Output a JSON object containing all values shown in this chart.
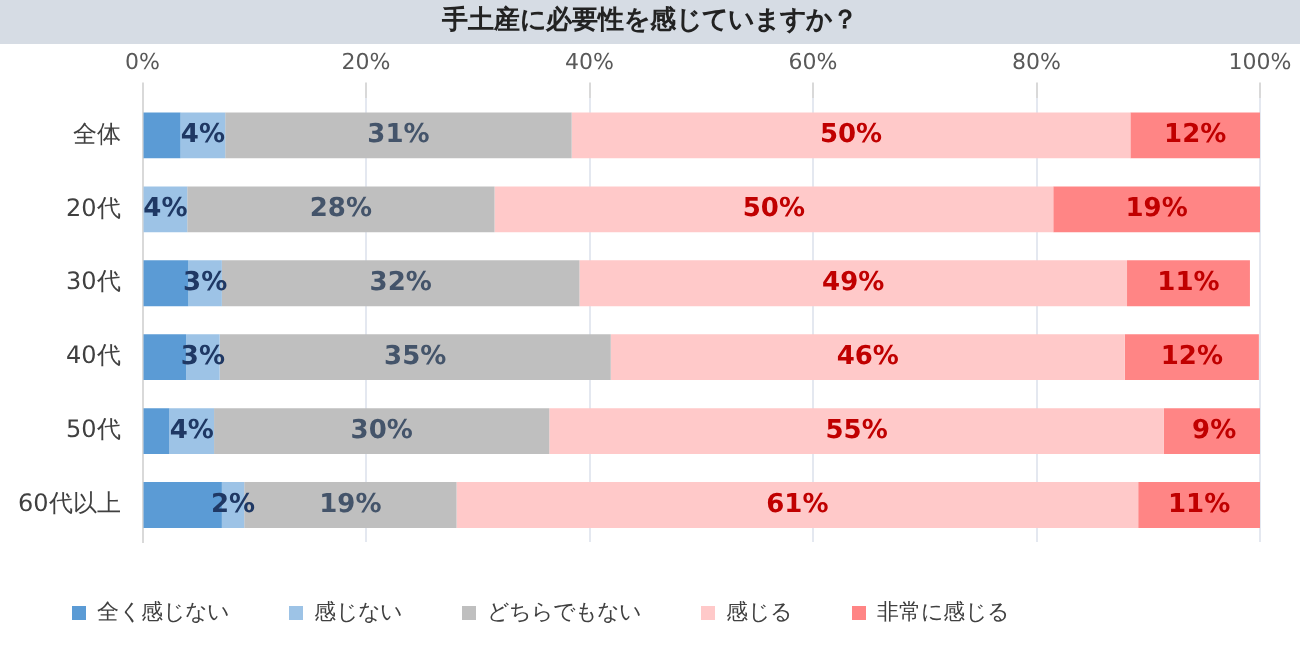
{
  "chart_data": {
    "type": "bar",
    "orientation": "horizontal",
    "stacked": true,
    "title": "手土産に必要性を感じていますか？",
    "categories": [
      "全体",
      "20代",
      "30代",
      "40代",
      "50代",
      "60代以上"
    ],
    "xlim": [
      0,
      100
    ],
    "xticks": [
      {
        "value": 0,
        "label": "0%"
      },
      {
        "value": 20,
        "label": "20%"
      },
      {
        "value": 40,
        "label": "40%"
      },
      {
        "value": 60,
        "label": "60%"
      },
      {
        "value": 80,
        "label": "80%"
      },
      {
        "value": 100,
        "label": "100%"
      }
    ],
    "grid": "x",
    "legend": "bottom",
    "series": [
      {
        "name": "全く感じない",
        "color": "#5b9bd5",
        "values": [
          3.4,
          0,
          4.1,
          3.9,
          2.4,
          7.1
        ]
      },
      {
        "name": "感じない",
        "color": "#9dc3e6",
        "values": [
          4,
          4,
          3,
          3,
          4,
          2
        ],
        "value_labels": [
          "4%",
          "4%",
          "3%",
          "3%",
          "4%",
          "2%"
        ]
      },
      {
        "name": "どちらでもない",
        "color": "#bfbfbf",
        "values": [
          31,
          27.5,
          32,
          35,
          30,
          19
        ],
        "value_labels": [
          "31%",
          "28%",
          "32%",
          "35%",
          "30%",
          "19%"
        ]
      },
      {
        "name": "感じる",
        "color": "#ffc9c9",
        "values": [
          50,
          50,
          49,
          46,
          55,
          61
        ],
        "value_labels": [
          "50%",
          "50%",
          "49%",
          "46%",
          "55%",
          "61%"
        ]
      },
      {
        "name": "非常に感じる",
        "color": "#ff8585",
        "values": [
          11.6,
          18.5,
          11,
          12,
          9,
          10.9
        ],
        "value_labels": [
          "12%",
          "19%",
          "11%",
          "12%",
          "9%",
          "11%"
        ]
      }
    ]
  }
}
